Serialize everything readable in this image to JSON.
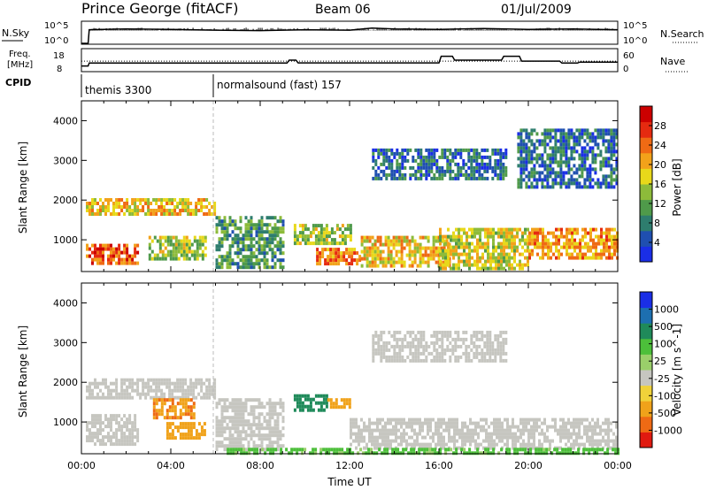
{
  "header": {
    "station": "Prince George (fitACF)",
    "beam": "Beam 06",
    "date": "01/Jul/2009"
  },
  "nsky_panel": {
    "left_label": "N.Sky",
    "right_label": "N.Search",
    "left_ticks": [
      "10^5",
      "10^0"
    ],
    "right_ticks": [
      "10^5",
      "10^0"
    ]
  },
  "freq_panel": {
    "left_label_line1": "Freq.",
    "left_label_line2": "[MHz]",
    "right_label": "Nave",
    "left_ticks": [
      "18",
      "8"
    ],
    "right_ticks": [
      "60",
      "0"
    ]
  },
  "cpid": {
    "label": "CPID",
    "modes": [
      "themis 3300",
      "normalsound (fast) 157"
    ]
  },
  "colors": {
    "power_scale": [
      "#1a2ee6",
      "#1f4fb0",
      "#2e7d6e",
      "#4f9a4a",
      "#8dbb3a",
      "#e8d81a",
      "#f2a21a",
      "#ef6a14",
      "#e52a10",
      "#cc0000"
    ],
    "velocity_scale": [
      "#1a2ee6",
      "#1d6fb0",
      "#1f8a5a",
      "#4cbf3a",
      "#9acf6a",
      "#c6c6c0",
      "#f0d23a",
      "#f0a21a",
      "#ef6a14",
      "#e01a10"
    ]
  },
  "chart_data": [
    {
      "type": "heatmap",
      "name": "power",
      "title": "",
      "xlabel": "",
      "ylabel": "Slant Range [km]",
      "xlim": [
        0,
        24
      ],
      "ylim": [
        200,
        4500
      ],
      "yticks": [
        "1000",
        "2000",
        "3000",
        "4000"
      ],
      "colorbar_label": "Power [dB]",
      "colorbar_ticks": [
        "4",
        "8",
        "12",
        "16",
        "20",
        "24",
        "28"
      ],
      "colorbar_range": [
        0,
        30
      ],
      "regions": [
        {
          "t0": 0.2,
          "t1": 6.0,
          "r0": 1650,
          "r1": 2050,
          "v": 18
        },
        {
          "t0": 0.2,
          "t1": 2.5,
          "r0": 450,
          "r1": 900,
          "v": 24
        },
        {
          "t0": 3.0,
          "t1": 5.5,
          "r0": 500,
          "r1": 1100,
          "v": 14
        },
        {
          "t0": 6.0,
          "t1": 9.0,
          "r0": 300,
          "r1": 1600,
          "v": 10
        },
        {
          "t0": 9.5,
          "t1": 12.0,
          "r0": 900,
          "r1": 1400,
          "v": 14
        },
        {
          "t0": 10.5,
          "t1": 12.5,
          "r0": 400,
          "r1": 800,
          "v": 22
        },
        {
          "t0": 12.5,
          "t1": 16.5,
          "r0": 300,
          "r1": 1100,
          "v": 18
        },
        {
          "t0": 16.0,
          "t1": 20.0,
          "r0": 300,
          "r1": 1300,
          "v": 16
        },
        {
          "t0": 20.0,
          "t1": 24.0,
          "r0": 500,
          "r1": 1300,
          "v": 20
        },
        {
          "t0": 13.0,
          "t1": 19.0,
          "r0": 2500,
          "r1": 3300,
          "v": 6
        },
        {
          "t0": 19.5,
          "t1": 24.0,
          "r0": 2300,
          "r1": 3800,
          "v": 6
        }
      ]
    },
    {
      "type": "heatmap",
      "name": "velocity",
      "title": "",
      "xlabel": "Time UT",
      "ylabel": "Slant Range [km]",
      "xlim": [
        0,
        24
      ],
      "ylim": [
        200,
        4500
      ],
      "xticks": [
        "00:00",
        "04:00",
        "08:00",
        "12:00",
        "16:00",
        "20:00",
        "00:00"
      ],
      "yticks": [
        "1000",
        "2000",
        "3000",
        "4000"
      ],
      "colorbar_label": "Velocity [m s^-1]",
      "colorbar_ticks": [
        "1000",
        "500",
        "100",
        "25",
        "-25",
        "-100",
        "-500",
        "-1000"
      ],
      "regions": [
        {
          "t0": 0.2,
          "t1": 6.0,
          "r0": 1650,
          "r1": 2100,
          "v": 0
        },
        {
          "t0": 0.2,
          "t1": 2.5,
          "r0": 450,
          "r1": 1200,
          "v": 0
        },
        {
          "t0": 3.2,
          "t1": 5.0,
          "r0": 1100,
          "r1": 1600,
          "v": -300
        },
        {
          "t0": 3.8,
          "t1": 5.5,
          "r0": 600,
          "r1": 1000,
          "v": -150
        },
        {
          "t0": 6.0,
          "t1": 9.0,
          "r0": 300,
          "r1": 1600,
          "v": 0
        },
        {
          "t0": 9.5,
          "t1": 11.0,
          "r0": 1300,
          "r1": 1700,
          "v": 300
        },
        {
          "t0": 11.0,
          "t1": 12.0,
          "r0": 1350,
          "r1": 1600,
          "v": -150
        },
        {
          "t0": 12.0,
          "t1": 24.0,
          "r0": 300,
          "r1": 1100,
          "v": 0
        },
        {
          "t0": 6.5,
          "t1": 24.0,
          "r0": 200,
          "r1": 350,
          "v": 60
        },
        {
          "t0": 13.0,
          "t1": 19.0,
          "r0": 2500,
          "r1": 3300,
          "v": 0
        }
      ]
    },
    {
      "type": "line",
      "name": "nsky",
      "series": [
        {
          "x": [
            0,
            0.3,
            0.35,
            2,
            4,
            6,
            8,
            10,
            12,
            13,
            14,
            16,
            18,
            20,
            22,
            24
          ],
          "values": [
            0,
            0,
            3.2,
            3.4,
            3.3,
            3.1,
            3.0,
            3.2,
            3.1,
            3.6,
            3.4,
            3.3,
            3.5,
            3.3,
            3.4,
            3.2
          ]
        }
      ]
    },
    {
      "type": "line",
      "name": "frequency",
      "series": [
        {
          "x": [
            0,
            0.3,
            0.35,
            9.2,
            9.3,
            9.6,
            9.7,
            16.0,
            16.1,
            16.6,
            16.7,
            18.8,
            18.9,
            19.6,
            19.7,
            21.4,
            21.5,
            22.2,
            22.3,
            24
          ],
          "values": [
            10,
            10,
            11.5,
            11.5,
            13,
            13,
            11.6,
            11.6,
            15,
            15,
            13,
            13,
            15,
            15,
            12.5,
            12.5,
            11.5,
            11.5,
            12,
            12
          ]
        },
        {
          "x": [
            0,
            24
          ],
          "values": [
            12.5,
            12.5
          ]
        }
      ]
    }
  ]
}
